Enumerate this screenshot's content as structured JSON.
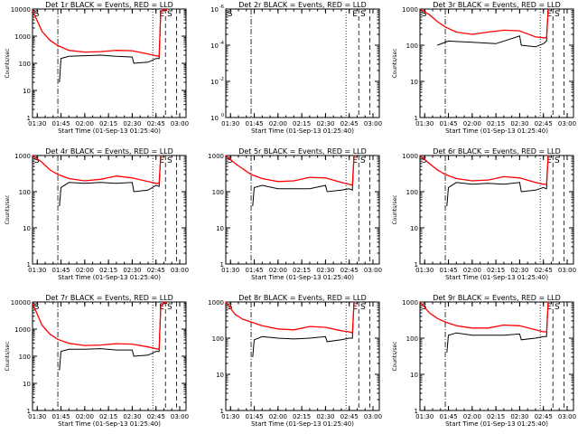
{
  "chart_data": [
    {
      "type": "line",
      "title": "Det 1r BLACK = Events, RED = LLD",
      "xlabel": "Start Time (01-Sep-13 01:25:40)",
      "ylabel": "Counts/sec",
      "x_ticks": [
        "01:30",
        "01:45",
        "02:00",
        "02:15",
        "02:30",
        "02:45",
        "03:00"
      ],
      "y_ticks": [
        "1",
        "10",
        "100",
        "1000",
        "10000"
      ],
      "y_log_range": [
        1,
        10000
      ],
      "markers": [
        "S",
        "E",
        "S"
      ],
      "series": [
        {
          "name": "Events",
          "color": "#000000",
          "x": [
            "01:30",
            "01:37",
            "01:43",
            "01:44",
            "01:45",
            "01:50",
            "02:00",
            "02:10",
            "02:20",
            "02:30",
            "02:31",
            "02:40",
            "02:45",
            "02:47",
            "02:48",
            "02:50",
            "02:52"
          ],
          "y": [
            null,
            null,
            null,
            20,
            150,
            180,
            190,
            200,
            180,
            170,
            100,
            110,
            150,
            150,
            8000,
            9000,
            9000
          ]
        },
        {
          "name": "LLD",
          "color": "#ff0000",
          "x": [
            "01:27",
            "01:33",
            "01:38",
            "01:43",
            "01:50",
            "02:00",
            "02:10",
            "02:20",
            "02:30",
            "02:40",
            "02:45",
            "02:47",
            "02:48",
            "02:50",
            "02:52"
          ],
          "y": [
            9000,
            1500,
            700,
            450,
            300,
            260,
            270,
            300,
            290,
            220,
            190,
            180,
            8000,
            9500,
            9500
          ]
        }
      ]
    },
    {
      "type": "line",
      "title": "Det 2r BLACK = Events, RED = LLD",
      "xlabel": "Start Time (01-Sep-13 01:25:40)",
      "ylabel": "",
      "x_ticks": [
        "01:30",
        "01:45",
        "02:00",
        "02:15",
        "02:30",
        "02:45",
        "03:00"
      ],
      "y_ticks": [
        "10^0",
        "10^-2",
        "10^-4",
        "10^-6"
      ],
      "y_log_range": [
        1e-06,
        1
      ],
      "markers": [
        "S",
        "E",
        "S"
      ],
      "series": []
    },
    {
      "type": "line",
      "title": "Det 3r BLACK = Events, RED = LLD",
      "xlabel": "Start Time (01-Sep-13 01:25:40)",
      "ylabel": "Counts/sec",
      "x_ticks": [
        "01:30",
        "01:45",
        "02:00",
        "02:15",
        "02:30",
        "02:45",
        "03:00"
      ],
      "y_ticks": [
        "1",
        "10",
        "100",
        "1000"
      ],
      "y_log_range": [
        1,
        1000
      ],
      "markers": [
        "S",
        "E",
        "S"
      ],
      "series": [
        {
          "name": "Events",
          "color": "#000000",
          "x": [
            "01:37",
            "01:38",
            "01:45",
            "02:00",
            "02:15",
            "02:30",
            "02:31",
            "02:40",
            "02:45",
            "02:47",
            "02:48"
          ],
          "y": [
            null,
            100,
            130,
            120,
            110,
            180,
            100,
            90,
            110,
            130,
            1000
          ]
        },
        {
          "name": "LLD",
          "color": "#ff0000",
          "x": [
            "01:27",
            "01:33",
            "01:38",
            "01:43",
            "01:50",
            "02:00",
            "02:10",
            "02:20",
            "02:30",
            "02:40",
            "02:45",
            "02:47",
            "02:48"
          ],
          "y": [
            1000,
            700,
            450,
            320,
            230,
            200,
            230,
            260,
            250,
            170,
            160,
            160,
            1000
          ]
        }
      ]
    },
    {
      "type": "line",
      "title": "Det 4r BLACK = Events, RED = LLD",
      "xlabel": "Start Time (01-Sep-13 01:25:40)",
      "ylabel": "Counts/sec",
      "x_ticks": [
        "01:30",
        "01:45",
        "02:00",
        "02:15",
        "02:30",
        "02:45",
        "03:00"
      ],
      "y_ticks": [
        "1",
        "10",
        "100",
        "1000"
      ],
      "y_log_range": [
        1,
        1000
      ],
      "markers": [
        "S",
        "E",
        "S"
      ],
      "series": [
        {
          "name": "Events",
          "color": "#000000",
          "x": [
            "01:43",
            "01:44",
            "01:45",
            "01:50",
            "02:00",
            "02:10",
            "02:20",
            "02:30",
            "02:31",
            "02:40",
            "02:45",
            "02:47",
            "02:48"
          ],
          "y": [
            null,
            40,
            130,
            180,
            170,
            180,
            170,
            180,
            100,
            110,
            150,
            140,
            1000
          ]
        },
        {
          "name": "LLD",
          "color": "#ff0000",
          "x": [
            "01:27",
            "01:33",
            "01:38",
            "01:43",
            "01:50",
            "02:00",
            "02:10",
            "02:20",
            "02:30",
            "02:40",
            "02:45",
            "02:47",
            "02:48"
          ],
          "y": [
            1000,
            650,
            400,
            300,
            230,
            200,
            220,
            270,
            240,
            190,
            170,
            170,
            1000
          ]
        }
      ]
    },
    {
      "type": "line",
      "title": "Det 5r BLACK = Events, RED = LLD",
      "xlabel": "Start Time (01-Sep-13 01:25:40)",
      "ylabel": "",
      "x_ticks": [
        "01:30",
        "01:45",
        "02:00",
        "02:15",
        "02:30",
        "02:45",
        "03:00"
      ],
      "y_ticks": [
        "1",
        "10",
        "100",
        "1000"
      ],
      "y_log_range": [
        1,
        1000
      ],
      "markers": [
        "S",
        "E",
        "S"
      ],
      "series": [
        {
          "name": "Events",
          "color": "#000000",
          "x": [
            "01:43",
            "01:44",
            "01:45",
            "01:50",
            "02:00",
            "02:10",
            "02:20",
            "02:30",
            "02:31",
            "02:40",
            "02:45",
            "02:47",
            "02:48"
          ],
          "y": [
            null,
            40,
            130,
            150,
            120,
            120,
            120,
            150,
            100,
            110,
            120,
            110,
            1000
          ]
        },
        {
          "name": "LLD",
          "color": "#ff0000",
          "x": [
            "01:27",
            "01:33",
            "01:38",
            "01:43",
            "01:50",
            "02:00",
            "02:10",
            "02:20",
            "02:30",
            "02:40",
            "02:45",
            "02:47",
            "02:48"
          ],
          "y": [
            1000,
            600,
            420,
            300,
            230,
            190,
            200,
            250,
            240,
            180,
            160,
            150,
            1000
          ]
        }
      ]
    },
    {
      "type": "line",
      "title": "Det 6r BLACK = Events, RED = LLD",
      "xlabel": "Start Time (01-Sep-13 01:25:40)",
      "ylabel": "Counts/sec",
      "x_ticks": [
        "01:30",
        "01:45",
        "02:00",
        "02:15",
        "02:30",
        "02:45",
        "03:00"
      ],
      "y_ticks": [
        "1",
        "10",
        "100",
        "1000"
      ],
      "y_log_range": [
        1,
        1000
      ],
      "markers": [
        "S",
        "E",
        "S"
      ],
      "series": [
        {
          "name": "Events",
          "color": "#000000",
          "x": [
            "01:43",
            "01:44",
            "01:45",
            "01:50",
            "02:00",
            "02:10",
            "02:20",
            "02:30",
            "02:31",
            "02:40",
            "02:45",
            "02:47",
            "02:48"
          ],
          "y": [
            null,
            40,
            130,
            180,
            160,
            170,
            160,
            180,
            100,
            110,
            130,
            120,
            1000
          ]
        },
        {
          "name": "LLD",
          "color": "#ff0000",
          "x": [
            "01:27",
            "01:33",
            "01:38",
            "01:43",
            "01:50",
            "02:00",
            "02:10",
            "02:20",
            "02:30",
            "02:40",
            "02:45",
            "02:47",
            "02:48"
          ],
          "y": [
            1000,
            600,
            400,
            300,
            230,
            200,
            210,
            260,
            240,
            180,
            160,
            160,
            1000
          ]
        }
      ]
    },
    {
      "type": "line",
      "title": "Det 7r BLACK = Events, RED = LLD",
      "xlabel": "Start Time (01-Sep-13 01:25:40)",
      "ylabel": "Counts/sec",
      "x_ticks": [
        "01:30",
        "01:45",
        "02:00",
        "02:15",
        "02:30",
        "02:45",
        "03:00"
      ],
      "y_ticks": [
        "1",
        "10",
        "100",
        "1000",
        "10000"
      ],
      "y_log_range": [
        1,
        10000
      ],
      "markers": [
        "S",
        "E",
        "S"
      ],
      "series": [
        {
          "name": "Events",
          "color": "#000000",
          "x": [
            "01:43",
            "01:44",
            "01:45",
            "01:50",
            "02:00",
            "02:10",
            "02:20",
            "02:30",
            "02:31",
            "02:40",
            "02:45",
            "02:47",
            "02:48",
            "02:50",
            "02:52"
          ],
          "y": [
            null,
            30,
            150,
            180,
            180,
            190,
            170,
            170,
            100,
            110,
            150,
            150,
            7000,
            9000,
            9000
          ]
        },
        {
          "name": "LLD",
          "color": "#ff0000",
          "x": [
            "01:27",
            "01:33",
            "01:38",
            "01:43",
            "01:50",
            "02:00",
            "02:10",
            "02:20",
            "02:30",
            "02:40",
            "02:45",
            "02:47",
            "02:48",
            "02:50",
            "02:52"
          ],
          "y": [
            9000,
            1400,
            650,
            420,
            300,
            250,
            260,
            290,
            280,
            220,
            190,
            180,
            7000,
            9500,
            9500
          ]
        }
      ]
    },
    {
      "type": "line",
      "title": "Det 8r BLACK = Events, RED = LLD",
      "xlabel": "Start Time (01-Sep-13 01:25:40)",
      "ylabel": "",
      "x_ticks": [
        "01:30",
        "01:45",
        "02:00",
        "02:15",
        "02:30",
        "02:45",
        "03:00"
      ],
      "y_ticks": [
        "1",
        "10",
        "100",
        "1000"
      ],
      "y_log_range": [
        1,
        1000
      ],
      "markers": [
        "S",
        "E",
        "S"
      ],
      "series": [
        {
          "name": "Events",
          "color": "#000000",
          "x": [
            "01:43",
            "01:44",
            "01:45",
            "01:50",
            "02:00",
            "02:10",
            "02:20",
            "02:30",
            "02:31",
            "02:40",
            "02:45",
            "02:47",
            "02:48"
          ],
          "y": [
            null,
            30,
            90,
            110,
            100,
            95,
            100,
            110,
            80,
            90,
            100,
            100,
            1000
          ]
        },
        {
          "name": "LLD",
          "color": "#ff0000",
          "x": [
            "01:27",
            "01:33",
            "01:38",
            "01:43",
            "01:50",
            "02:00",
            "02:10",
            "02:20",
            "02:30",
            "02:40",
            "02:45",
            "02:47",
            "02:48"
          ],
          "y": [
            1000,
            450,
            330,
            280,
            220,
            180,
            170,
            210,
            200,
            160,
            150,
            140,
            1000
          ]
        }
      ]
    },
    {
      "type": "line",
      "title": "Det 9r BLACK = Events, RED = LLD",
      "xlabel": "Start Time (01-Sep-13 01:25:40)",
      "ylabel": "Counts/sec",
      "x_ticks": [
        "01:30",
        "01:45",
        "02:00",
        "02:15",
        "02:30",
        "02:45",
        "03:00"
      ],
      "y_ticks": [
        "1",
        "10",
        "100",
        "1000"
      ],
      "y_log_range": [
        1,
        1000
      ],
      "markers": [
        "S",
        "E",
        "S"
      ],
      "series": [
        {
          "name": "Events",
          "color": "#000000",
          "x": [
            "01:43",
            "01:44",
            "01:45",
            "01:50",
            "02:00",
            "02:10",
            "02:20",
            "02:30",
            "02:31",
            "02:40",
            "02:45",
            "02:47",
            "02:48"
          ],
          "y": [
            null,
            40,
            120,
            140,
            120,
            120,
            120,
            130,
            90,
            100,
            110,
            110,
            1000
          ]
        },
        {
          "name": "LLD",
          "color": "#ff0000",
          "x": [
            "01:27",
            "01:33",
            "01:38",
            "01:43",
            "01:50",
            "02:00",
            "02:10",
            "02:20",
            "02:30",
            "02:40",
            "02:45",
            "02:47",
            "02:48"
          ],
          "y": [
            1000,
            500,
            350,
            280,
            220,
            190,
            190,
            230,
            220,
            170,
            150,
            150,
            1000
          ]
        }
      ]
    }
  ]
}
